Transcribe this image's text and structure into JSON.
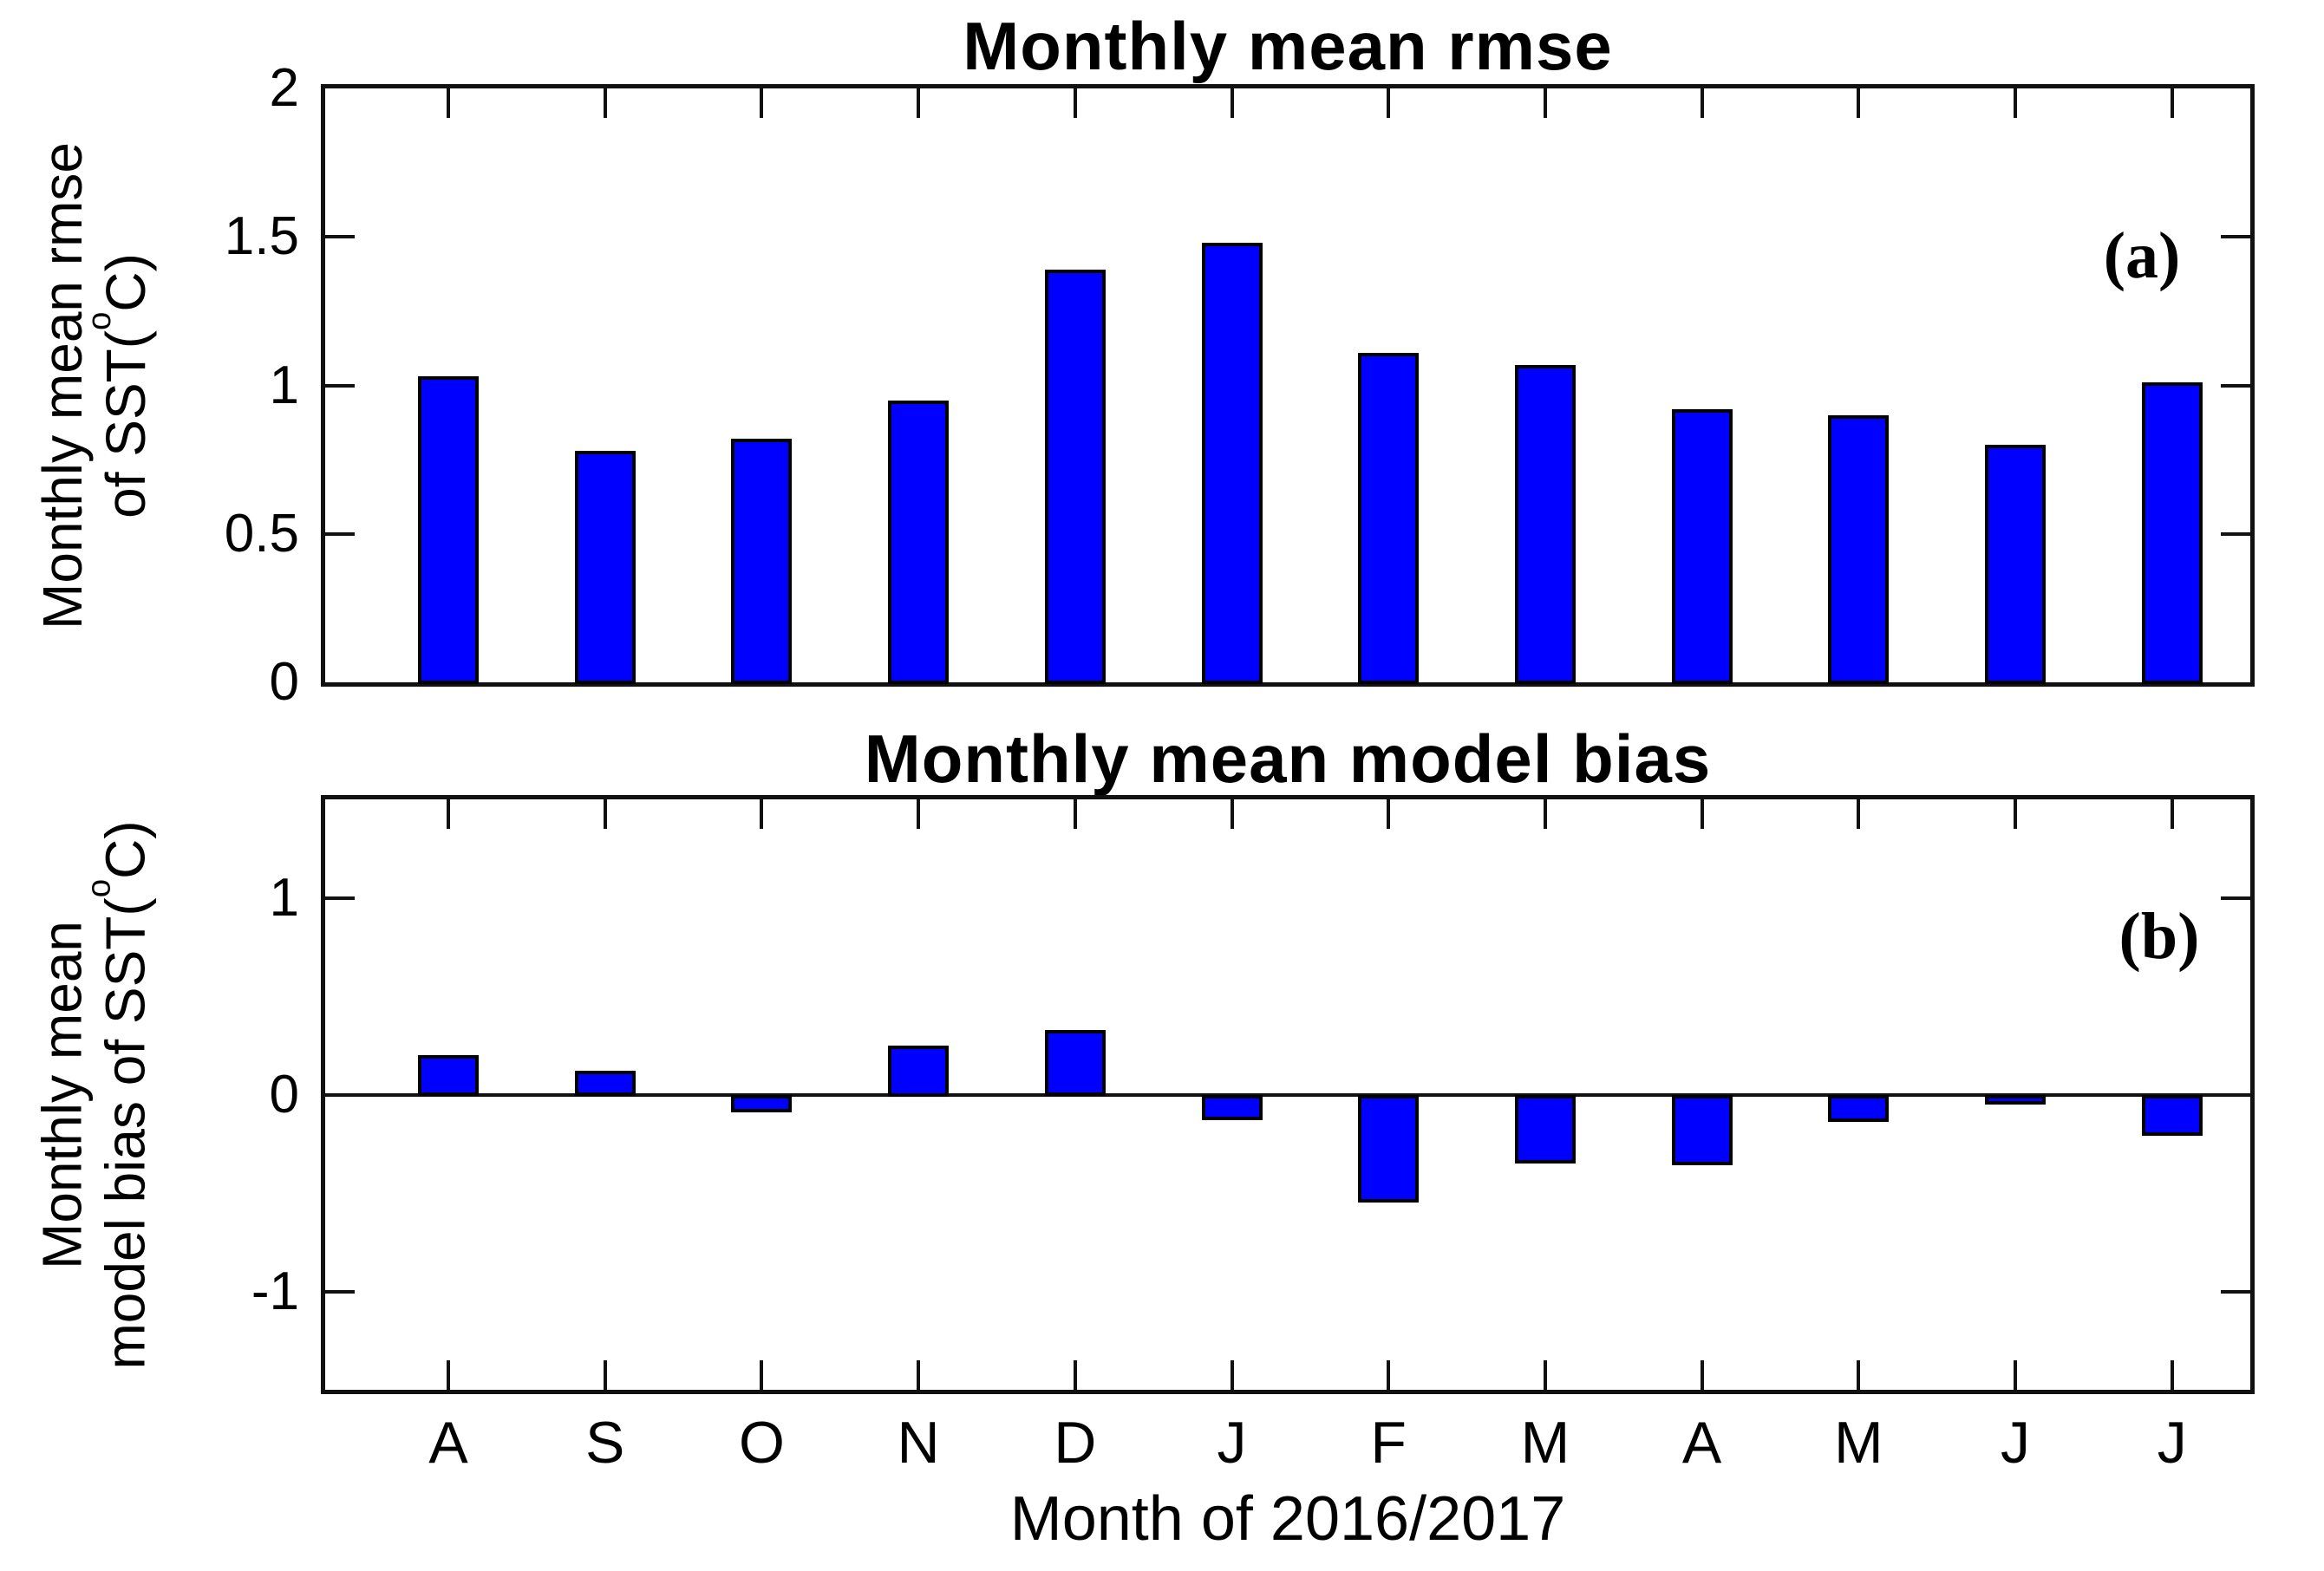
{
  "figure": {
    "panel_a_label": "(a)",
    "panel_b_label": "(b)",
    "background_color": "#ffffff",
    "bar_color": "#0000ff",
    "bar_edge_color": "#000000",
    "frame_color": "#111111",
    "text_color": "#000000"
  },
  "axis_labels": {
    "rmse": {
      "line1": "Monthly mean rmse",
      "line2_pre": "of SST(",
      "degree": "o",
      "line2_post": "C)"
    },
    "bias": {
      "line1": "Monthly mean",
      "line2_pre": "model bias of SST(",
      "degree": "o",
      "line2_post": "C)"
    }
  },
  "chart_data": [
    {
      "type": "bar",
      "title": "Monthly mean rmse",
      "ylabel": "Monthly mean rmse of SST(°C)",
      "categories": [
        "A",
        "S",
        "O",
        "N",
        "D",
        "J",
        "F",
        "M",
        "A",
        "M",
        "J",
        "J"
      ],
      "values": [
        1.03,
        0.78,
        0.82,
        0.95,
        1.39,
        1.48,
        1.11,
        1.07,
        0.92,
        0.9,
        0.8,
        1.01
      ],
      "ylim": [
        0,
        2
      ],
      "yticks": [
        0,
        0.5,
        1,
        1.5,
        2
      ],
      "ytick_labels": [
        "0",
        "0.5",
        "1",
        "1.5",
        "2"
      ],
      "grid": false,
      "panel": "(a)"
    },
    {
      "type": "bar",
      "title": "Monthly mean model bias",
      "ylabel": "Monthly mean model bias of SST(°C)",
      "xlabel": "Month of 2016/2017",
      "categories": [
        "A",
        "S",
        "O",
        "N",
        "D",
        "J",
        "F",
        "M",
        "A",
        "M",
        "J",
        "J"
      ],
      "values": [
        0.2,
        0.12,
        -0.08,
        0.25,
        0.33,
        -0.12,
        -0.54,
        -0.34,
        -0.35,
        -0.13,
        -0.04,
        -0.2
      ],
      "ylim": [
        -1.5,
        1.5
      ],
      "yticks": [
        -1,
        0,
        1
      ],
      "ytick_labels": [
        "-1",
        "0",
        "1"
      ],
      "grid": false,
      "panel": "(b)"
    }
  ]
}
